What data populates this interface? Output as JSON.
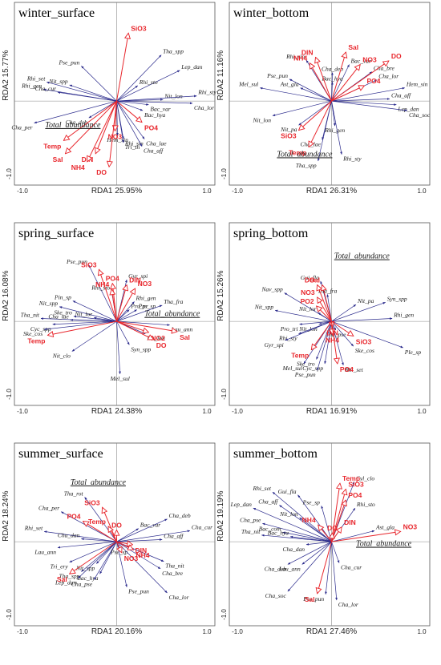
{
  "colors": {
    "species_arrow": "#2b2b8c",
    "env_arrow": "#e8262c",
    "axis": "#888888"
  },
  "chart_data": [
    {
      "type": "scatter",
      "title": "winter_surface",
      "xlabel": "RDA1  25.95%",
      "ylabel": "RDA2  15.77%",
      "xticks": [
        "-1.0",
        "1.0"
      ],
      "yticks": [
        "-1.0"
      ],
      "species": [
        {
          "name": "Pse_pun",
          "x": -0.42,
          "y": 0.48
        },
        {
          "name": "Tha_spp",
          "x": 0.53,
          "y": 0.63
        },
        {
          "name": "Lep_dan",
          "x": 0.75,
          "y": 0.42
        },
        {
          "name": "Rhi_set",
          "x": -0.83,
          "y": 0.26
        },
        {
          "name": "Nit_spp",
          "x": -0.56,
          "y": 0.22
        },
        {
          "name": "Rhi_gen",
          "x": -0.87,
          "y": 0.16
        },
        {
          "name": "Cha_cur",
          "x": -0.7,
          "y": 0.12
        },
        {
          "name": "Rhi_sto",
          "x": 0.25,
          "y": 0.21
        },
        {
          "name": "Nit_lon",
          "x": 0.55,
          "y": 0.02
        },
        {
          "name": "Rhi_sty",
          "x": 0.95,
          "y": 0.07
        },
        {
          "name": "Cha_lor",
          "x": 0.9,
          "y": -0.03
        },
        {
          "name": "Bac_var",
          "x": 0.38,
          "y": -0.05
        },
        {
          "name": "Bac_hya",
          "x": 0.31,
          "y": -0.13
        },
        {
          "name": "Cha_per",
          "x": -0.98,
          "y": -0.3
        },
        {
          "name": "Cha_deb",
          "x": -0.33,
          "y": -0.23
        },
        {
          "name": "Hem_sin",
          "x": 0.01,
          "y": -0.47
        },
        {
          "name": "Rhi_sin",
          "x": 0.08,
          "y": -0.52
        },
        {
          "name": "Cha_lae",
          "x": 0.33,
          "y": -0.52
        },
        {
          "name": "Tri_th",
          "x": 0.08,
          "y": -0.57
        },
        {
          "name": "Cha_aff",
          "x": 0.3,
          "y": -0.62
        }
      ],
      "env": [
        {
          "name": "SiO3",
          "x": 0.14,
          "y": 0.93
        },
        {
          "name": "PO4",
          "x": 0.3,
          "y": -0.29
        },
        {
          "name": "NO3",
          "x": -0.02,
          "y": -0.41
        },
        {
          "name": "Temp",
          "x": -0.63,
          "y": -0.54
        },
        {
          "name": "Sal",
          "x": -0.61,
          "y": -0.72
        },
        {
          "name": "DIN",
          "x": -0.25,
          "y": -0.72
        },
        {
          "name": "NH4",
          "x": -0.35,
          "y": -0.83
        },
        {
          "name": "DO",
          "x": -0.09,
          "y": -0.9
        }
      ],
      "total_abundance": {
        "label": "Total_abundance",
        "x": -0.52,
        "y": -0.36
      }
    },
    {
      "type": "scatter",
      "title": "winter_bottom",
      "xlabel": "RDA1  26.31%",
      "ylabel": "RDA2  11.16%",
      "xticks": [
        "-1.0",
        "1.0"
      ],
      "yticks": [
        "-1.0"
      ],
      "species": [
        {
          "name": "Rhi_sin",
          "x": -0.3,
          "y": 0.56
        },
        {
          "name": "Bac_var",
          "x": 0.21,
          "y": 0.5
        },
        {
          "name": "Cha_bre",
          "x": 0.48,
          "y": 0.4
        },
        {
          "name": "Cha_deb",
          "x": 0.01,
          "y": 0.39
        },
        {
          "name": "Pse_pun",
          "x": -0.5,
          "y": 0.3
        },
        {
          "name": "Bac_hya",
          "x": 0.01,
          "y": 0.26
        },
        {
          "name": "Cha_lor",
          "x": 0.54,
          "y": 0.29
        },
        {
          "name": "Ast_gla",
          "x": -0.37,
          "y": 0.18
        },
        {
          "name": "Mel_sul",
          "x": -0.85,
          "y": 0.18
        },
        {
          "name": "Hem_sin",
          "x": 0.87,
          "y": 0.18
        },
        {
          "name": "Cha_aff",
          "x": 0.69,
          "y": 0.03
        },
        {
          "name": "Lep_dan",
          "x": 0.77,
          "y": -0.05
        },
        {
          "name": "Cha_soc",
          "x": 0.9,
          "y": -0.13
        },
        {
          "name": "Nit_lon",
          "x": -0.7,
          "y": -0.2
        },
        {
          "name": "Nit_pa",
          "x": -0.39,
          "y": -0.33
        },
        {
          "name": "Rhi_gen",
          "x": 0.04,
          "y": -0.34
        },
        {
          "name": "Cha_lae",
          "x": -0.11,
          "y": -0.53
        },
        {
          "name": "Rhi_sty",
          "x": 0.12,
          "y": -0.73
        },
        {
          "name": "Tha_spp",
          "x": -0.16,
          "y": -0.82
        }
      ],
      "env": [
        {
          "name": "Sal",
          "x": 0.17,
          "y": 0.67
        },
        {
          "name": "DIN",
          "x": -0.19,
          "y": 0.6
        },
        {
          "name": "NH4",
          "x": -0.26,
          "y": 0.52
        },
        {
          "name": "DO",
          "x": 0.68,
          "y": 0.55
        },
        {
          "name": "NO3",
          "x": 0.34,
          "y": 0.5
        },
        {
          "name": "PO4",
          "x": 0.39,
          "y": 0.21
        },
        {
          "name": "SiO3",
          "x": -0.39,
          "y": -0.4
        },
        {
          "name": "Temp",
          "x": -0.27,
          "y": -0.63
        }
      ],
      "total_abundance": {
        "label": "Total_abundance",
        "x": -0.32,
        "y": -0.76
      }
    },
    {
      "type": "scatter",
      "title": "spring_surface",
      "xlabel": "RDA1  24.38%",
      "ylabel": "RDA2  16.08%",
      "xticks": [
        "-1.0",
        "1.0"
      ],
      "yticks": [
        "-1.0"
      ],
      "species": [
        {
          "name": "Pse_pun",
          "x": -0.33,
          "y": 0.77
        },
        {
          "name": "Gyr_spi",
          "x": 0.12,
          "y": 0.57
        },
        {
          "name": "Pin_sp",
          "x": -0.52,
          "y": 0.28
        },
        {
          "name": "Rhi_sto",
          "x": -0.06,
          "y": 0.41
        },
        {
          "name": "Rhi_gen",
          "x": 0.21,
          "y": 0.27
        },
        {
          "name": "Pro_pr",
          "x": 0.15,
          "y": 0.16
        },
        {
          "name": "Pro_sp",
          "x": 0.24,
          "y": 0.16
        },
        {
          "name": "Tha_fra",
          "x": 0.54,
          "y": 0.22
        },
        {
          "name": "Nit_spp",
          "x": -0.68,
          "y": 0.2
        },
        {
          "name": "Tha_nit",
          "x": -0.9,
          "y": 0.04
        },
        {
          "name": "Ske_tro",
          "x": -0.51,
          "y": 0.07
        },
        {
          "name": "Cha_lae",
          "x": -0.55,
          "y": 0.02
        },
        {
          "name": "Nit_lor",
          "x": -0.27,
          "y": 0.05
        },
        {
          "name": "Cyc_spp",
          "x": -0.76,
          "y": -0.04
        },
        {
          "name": "Ske_cos",
          "x": -0.86,
          "y": -0.11
        },
        {
          "name": "Lau_ann",
          "x": 0.63,
          "y": -0.05
        },
        {
          "name": "Nit_lon",
          "x": 0.34,
          "y": -0.17
        },
        {
          "name": "Syn_spp",
          "x": 0.15,
          "y": -0.32
        },
        {
          "name": "Nit_clo",
          "x": -0.53,
          "y": -0.41
        },
        {
          "name": "Mel_sul",
          "x": 0.04,
          "y": -0.72
        }
      ],
      "env": [
        {
          "name": "SiO3",
          "x": -0.21,
          "y": 0.71
        },
        {
          "name": "PO4",
          "x": -0.05,
          "y": 0.52
        },
        {
          "name": "NH4",
          "x": -0.06,
          "y": 0.44
        },
        {
          "name": "DIN",
          "x": 0.12,
          "y": 0.5
        },
        {
          "name": "NO3",
          "x": 0.22,
          "y": 0.45
        },
        {
          "name": "Sal",
          "x": 0.72,
          "y": -0.14
        },
        {
          "name": "NO2",
          "x": 0.38,
          "y": -0.15
        },
        {
          "name": "DO",
          "x": 0.44,
          "y": -0.25
        },
        {
          "name": "Temp",
          "x": -0.82,
          "y": -0.19
        }
      ],
      "total_abundance": {
        "label": "Total_abundance",
        "x": 0.66,
        "y": 0.07
      }
    },
    {
      "type": "scatter",
      "title": "spring_bottom",
      "xlabel": "RDA1  16.91%",
      "ylabel": "RDA2  15.26%",
      "xticks": [
        "-1.0",
        "1.0"
      ],
      "yticks": [
        "-1.0"
      ],
      "species": [
        {
          "name": "Gui_fla",
          "x": -0.13,
          "y": 0.55
        },
        {
          "name": "Tha_fra",
          "x": -0.05,
          "y": 0.37
        },
        {
          "name": "Nav_spp",
          "x": -0.56,
          "y": 0.39
        },
        {
          "name": "Nit_pa",
          "x": 0.29,
          "y": 0.23
        },
        {
          "name": "Syn_spp",
          "x": 0.64,
          "y": 0.26
        },
        {
          "name": "Nit_spp",
          "x": -0.67,
          "y": 0.15
        },
        {
          "name": "Nit_lor",
          "x": -0.16,
          "y": 0.12
        },
        {
          "name": "Rhi_gen",
          "x": 0.72,
          "y": 0.04
        },
        {
          "name": "Pro_tri",
          "x": -0.38,
          "y": -0.04
        },
        {
          "name": "Nit_lon",
          "x": -0.15,
          "y": -0.04
        },
        {
          "name": "Tha_pse",
          "x": 0.05,
          "y": -0.12
        },
        {
          "name": "Rhi_sty",
          "x": -0.39,
          "y": -0.17
        },
        {
          "name": "Gyr_spi",
          "x": -0.55,
          "y": -0.26
        },
        {
          "name": "Ske_cos",
          "x": 0.26,
          "y": -0.34
        },
        {
          "name": "Ske_tro",
          "x": -0.18,
          "y": -0.52
        },
        {
          "name": "Cyc_spp",
          "x": -0.08,
          "y": -0.58
        },
        {
          "name": "Mel_sul",
          "x": -0.33,
          "y": -0.58
        },
        {
          "name": "Pse_pun",
          "x": -0.17,
          "y": -0.67
        },
        {
          "name": "Rhi_set",
          "x": 0.14,
          "y": -0.6
        },
        {
          "name": "Ple_sp",
          "x": 0.85,
          "y": -0.36
        }
      ],
      "env": [
        {
          "name": "DO",
          "x": -0.17,
          "y": 0.5
        },
        {
          "name": "Sal",
          "x": -0.11,
          "y": 0.5
        },
        {
          "name": "NO3",
          "x": -0.17,
          "y": 0.33
        },
        {
          "name": "PO2",
          "x": -0.18,
          "y": 0.21
        },
        {
          "name": "DIN",
          "x": 0.01,
          "y": -0.08
        },
        {
          "name": "NH4",
          "x": 0.01,
          "y": -0.18
        },
        {
          "name": "SiO3",
          "x": 0.26,
          "y": -0.2
        },
        {
          "name": "Temp",
          "x": -0.24,
          "y": -0.39
        },
        {
          "name": "PO4",
          "x": 0.07,
          "y": -0.58
        }
      ],
      "total_abundance": {
        "label": "Total_abundance",
        "x": 0.36,
        "y": 0.86
      }
    },
    {
      "type": "scatter",
      "title": "summer_surface",
      "xlabel": "RDA1  20.16%",
      "ylabel": "RDA2  18.24%",
      "xticks": [
        "-1.0",
        "1.0"
      ],
      "yticks": [
        "-1.0"
      ],
      "species": [
        {
          "name": "Tha_rot",
          "x": -0.38,
          "y": 0.61
        },
        {
          "name": "Cha_per",
          "x": -0.66,
          "y": 0.41
        },
        {
          "name": "Rhi_set",
          "x": -0.86,
          "y": 0.14
        },
        {
          "name": "Cha_dan",
          "x": -0.42,
          "y": 0.04
        },
        {
          "name": "Lau_ann",
          "x": -0.7,
          "y": -0.08
        },
        {
          "name": "Tri_ery",
          "x": -0.56,
          "y": -0.28
        },
        {
          "name": "Tha_spp",
          "x": -0.42,
          "y": -0.41
        },
        {
          "name": "Nit_spp",
          "x": -0.24,
          "y": -0.3
        },
        {
          "name": "Bac_hya",
          "x": -0.2,
          "y": -0.44
        },
        {
          "name": "Lep_dan",
          "x": -0.46,
          "y": -0.5
        },
        {
          "name": "Cha_pse",
          "x": -0.27,
          "y": -0.52
        },
        {
          "name": "Pse_sp",
          "x": 0.03,
          "y": -0.08
        },
        {
          "name": "Bac_var",
          "x": 0.26,
          "y": 0.18
        },
        {
          "name": "Cha_deb",
          "x": 0.6,
          "y": 0.31
        },
        {
          "name": "Cha_cur",
          "x": 0.87,
          "y": 0.15
        },
        {
          "name": "Cha_aff",
          "x": 0.54,
          "y": 0.03
        },
        {
          "name": "Tha_nit",
          "x": 0.56,
          "y": -0.27
        },
        {
          "name": "Cha_bre",
          "x": 0.52,
          "y": -0.37
        },
        {
          "name": "Pse_pun",
          "x": 0.12,
          "y": -0.62
        },
        {
          "name": "Cha_lor",
          "x": 0.6,
          "y": -0.7
        }
      ],
      "env": [
        {
          "name": "SiO3",
          "x": -0.17,
          "y": 0.47
        },
        {
          "name": "PO4",
          "x": -0.4,
          "y": 0.28
        },
        {
          "name": "Temp",
          "x": -0.1,
          "y": 0.21
        },
        {
          "name": "DO",
          "x": 0.0,
          "y": 0.16
        },
        {
          "name": "DIN",
          "x": 0.19,
          "y": -0.04
        },
        {
          "name": "NH4",
          "x": 0.2,
          "y": -0.11
        },
        {
          "name": "NO3",
          "x": 0.06,
          "y": -0.15
        },
        {
          "name": "Sal",
          "x": -0.56,
          "y": -0.44
        }
      ],
      "total_abundance": {
        "label": "Total_abundance",
        "x": -0.22,
        "y": 0.78
      }
    },
    {
      "type": "scatter",
      "title": "summer_bottom",
      "xlabel": "RDA1  27.46%",
      "ylabel": "RDA2  19.19%",
      "xticks": [
        "-1.0",
        "1.0"
      ],
      "yticks": [
        "-1.0"
      ],
      "species": [
        {
          "name": "Cyl_clo",
          "x": 0.27,
          "y": 0.82
        },
        {
          "name": "Rhi_set",
          "x": -0.7,
          "y": 0.68
        },
        {
          "name": "Gui_fla",
          "x": -0.4,
          "y": 0.64
        },
        {
          "name": "Rhi_sto",
          "x": 0.28,
          "y": 0.46
        },
        {
          "name": "Cha_aff",
          "x": -0.62,
          "y": 0.5
        },
        {
          "name": "Pse_sp",
          "x": -0.12,
          "y": 0.49
        },
        {
          "name": "Lep_dan",
          "x": -0.93,
          "y": 0.46
        },
        {
          "name": "Nit_lon",
          "x": -0.38,
          "y": 0.33
        },
        {
          "name": "Cha_pse",
          "x": -0.82,
          "y": 0.25
        },
        {
          "name": "Bac_com",
          "x": -0.58,
          "y": 0.13
        },
        {
          "name": "Tha_nit",
          "x": -0.83,
          "y": 0.09
        },
        {
          "name": "Bac_hya",
          "x": -0.49,
          "y": 0.07
        },
        {
          "name": "Cha_dan",
          "x": -0.3,
          "y": -0.04
        },
        {
          "name": "Ast_gla",
          "x": 0.51,
          "y": 0.15
        },
        {
          "name": "Cha_deb",
          "x": -0.52,
          "y": -0.31
        },
        {
          "name": "Lau_ann",
          "x": -0.35,
          "y": -0.31
        },
        {
          "name": "Cha_cur",
          "x": 0.09,
          "y": -0.29
        },
        {
          "name": "Cha_soc",
          "x": -0.52,
          "y": -0.68
        },
        {
          "name": "Pse_pun",
          "x": -0.07,
          "y": -0.72
        },
        {
          "name": "Cha_lor",
          "x": 0.06,
          "y": -0.8
        }
      ],
      "env": [
        {
          "name": "Temp",
          "x": 0.1,
          "y": 0.8
        },
        {
          "name": "SiO3",
          "x": 0.17,
          "y": 0.72
        },
        {
          "name": "PO4",
          "x": 0.17,
          "y": 0.57
        },
        {
          "name": "DIN",
          "x": 0.12,
          "y": 0.2
        },
        {
          "name": "DO",
          "x": 0.01,
          "y": 0.12
        },
        {
          "name": "NH4",
          "x": -0.16,
          "y": 0.23
        },
        {
          "name": "NO3",
          "x": 0.82,
          "y": 0.14
        },
        {
          "name": "Sal",
          "x": -0.17,
          "y": -0.71
        }
      ],
      "total_abundance": {
        "label": "Total_abundance",
        "x": 0.62,
        "y": -0.06
      }
    }
  ]
}
